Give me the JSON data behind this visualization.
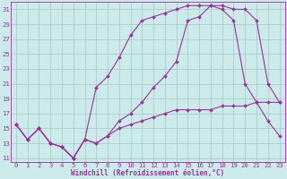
{
  "xlabel": "Windchill (Refroidissement éolien,°C)",
  "background_color": "#cceaea",
  "grid_color": "#aacccc",
  "line_color": "#993399",
  "xlim": [
    -0.5,
    23.5
  ],
  "ylim": [
    10.5,
    32.0
  ],
  "yticks": [
    11,
    13,
    15,
    17,
    19,
    21,
    23,
    25,
    27,
    29,
    31
  ],
  "xticks": [
    0,
    1,
    2,
    3,
    4,
    5,
    6,
    7,
    8,
    9,
    10,
    11,
    12,
    13,
    14,
    15,
    16,
    17,
    18,
    19,
    20,
    21,
    22,
    23
  ],
  "line1_x": [
    0,
    1,
    2,
    3,
    4,
    5,
    6,
    7,
    8,
    9,
    10,
    11,
    12,
    13,
    14,
    15,
    16,
    17,
    18,
    19,
    20,
    21,
    22,
    23
  ],
  "line1_y": [
    15.5,
    13.5,
    15.0,
    13.0,
    12.5,
    11.0,
    13.5,
    13.0,
    14.0,
    16.0,
    17.0,
    18.5,
    20.5,
    22.0,
    24.0,
    29.5,
    30.0,
    31.5,
    31.5,
    31.0,
    31.0,
    29.5,
    21.0,
    18.5
  ],
  "line2_x": [
    0,
    1,
    2,
    3,
    4,
    5,
    6,
    7,
    8,
    9,
    10,
    11,
    12,
    13,
    14,
    15,
    16,
    17,
    18,
    19,
    20,
    21,
    22,
    23
  ],
  "line2_y": [
    15.5,
    13.5,
    15.0,
    13.0,
    12.5,
    11.0,
    13.5,
    20.5,
    22.0,
    24.5,
    27.5,
    29.5,
    30.0,
    30.5,
    31.0,
    31.5,
    31.5,
    31.5,
    31.0,
    29.5,
    21.0,
    18.5,
    16.0,
    14.0
  ],
  "line3_x": [
    0,
    1,
    2,
    3,
    4,
    5,
    6,
    7,
    8,
    9,
    10,
    11,
    12,
    13,
    14,
    15,
    16,
    17,
    18,
    19,
    20,
    21,
    22,
    23
  ],
  "line3_y": [
    15.5,
    13.5,
    15.0,
    13.0,
    12.5,
    11.0,
    13.5,
    13.0,
    14.0,
    15.0,
    15.5,
    16.0,
    16.5,
    17.0,
    17.5,
    17.5,
    17.5,
    17.5,
    18.0,
    18.0,
    18.0,
    18.5,
    18.5,
    18.5
  ],
  "tick_fontsize": 5.2,
  "xlabel_fontsize": 5.5,
  "marker_size": 2.0,
  "line_width": 0.8
}
